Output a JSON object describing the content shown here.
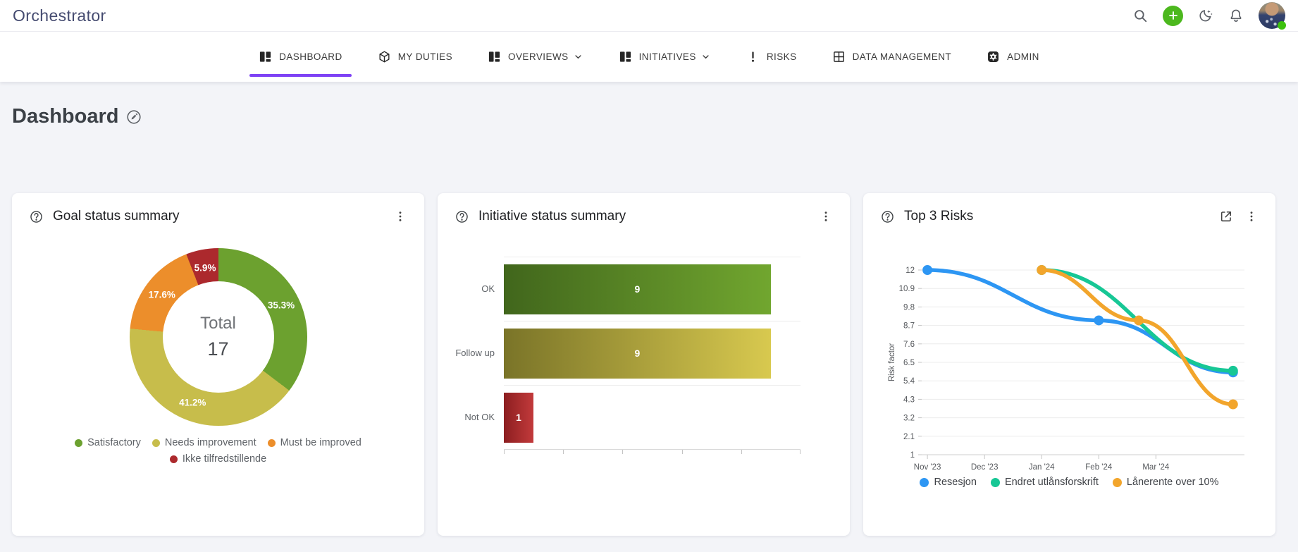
{
  "brand": {
    "name": "Orchestrator"
  },
  "topbar": {
    "icons": [
      "search",
      "add",
      "dark-mode",
      "notifications"
    ],
    "avatar": {
      "status": "online"
    }
  },
  "nav": {
    "items": [
      {
        "label": "DASHBOARD",
        "icon": "dashboard",
        "active": true,
        "dropdown": false
      },
      {
        "label": "MY DUTIES",
        "icon": "package",
        "active": false,
        "dropdown": false
      },
      {
        "label": "OVERVIEWS",
        "icon": "dashboard",
        "active": false,
        "dropdown": true
      },
      {
        "label": "INITIATIVES",
        "icon": "dashboard",
        "active": false,
        "dropdown": true
      },
      {
        "label": "RISKS",
        "icon": "exclamation",
        "active": false,
        "dropdown": false
      },
      {
        "label": "DATA MANAGEMENT",
        "icon": "window-grid",
        "active": false,
        "dropdown": false
      },
      {
        "label": "ADMIN",
        "icon": "gear-square",
        "active": false,
        "dropdown": false
      }
    ]
  },
  "page": {
    "title": "Dashboard"
  },
  "cards": {
    "goal": {
      "title": "Goal status summary"
    },
    "initiative": {
      "title": "Initiative status summary"
    },
    "risks": {
      "title": "Top 3 Risks"
    }
  },
  "chart_data": [
    {
      "type": "pie",
      "title": "Goal status summary",
      "center_label": "Total",
      "center_value": 17,
      "segments": [
        {
          "label": "Satisfactory",
          "pct": 35.3,
          "color": "#6ca12f"
        },
        {
          "label": "Needs improvement",
          "pct": 41.2,
          "color": "#c7bd4b"
        },
        {
          "label": "Must be improved",
          "pct": 17.6,
          "color": "#ec8e2b"
        },
        {
          "label": "Ikke tilfredstillende",
          "pct": 5.9,
          "color": "#ac292d"
        }
      ]
    },
    {
      "type": "bar",
      "title": "Initiative status summary",
      "orientation": "horizontal",
      "categories": [
        "OK",
        "Follow up",
        "Not OK"
      ],
      "values": [
        9,
        9,
        1
      ],
      "xlim": [
        0,
        10
      ],
      "x_ticks": [
        0,
        2,
        4,
        6,
        8,
        10
      ],
      "bar_gradients": [
        [
          "#41661c",
          "#71a62f"
        ],
        [
          "#7a7428",
          "#d8c94f"
        ],
        [
          "#8c1e20",
          "#c23a3b"
        ]
      ]
    },
    {
      "type": "line",
      "title": "Top 3 Risks",
      "ylabel": "Risk factor",
      "ylim": [
        1,
        12
      ],
      "y_ticks": [
        12,
        10.9,
        9.8,
        8.7,
        7.6,
        6.5,
        5.4,
        4.3,
        3.2,
        2.1,
        1
      ],
      "x_tick_labels": [
        "Nov '23",
        "Dec '23",
        "Jan '24",
        "Feb '24",
        "Mar '24"
      ],
      "x_tick_pos": [
        0,
        1,
        2,
        3,
        4
      ],
      "x_range": [
        -0.1,
        5.55
      ],
      "grid": true,
      "legend_position": "bottom",
      "series": [
        {
          "name": "Resesjon",
          "color": "#2d96f3",
          "points": [
            [
              0,
              12
            ],
            [
              3,
              9
            ],
            [
              5.35,
              5.9
            ]
          ]
        },
        {
          "name": "Endret utlånsforskrift",
          "color": "#17c795",
          "points": [
            [
              2,
              12
            ],
            [
              5.35,
              6
            ]
          ]
        },
        {
          "name": "Lånerente over 10%",
          "color": "#f2a52c",
          "points": [
            [
              2,
              12
            ],
            [
              3.7,
              9
            ],
            [
              5.35,
              4
            ]
          ]
        }
      ]
    }
  ]
}
